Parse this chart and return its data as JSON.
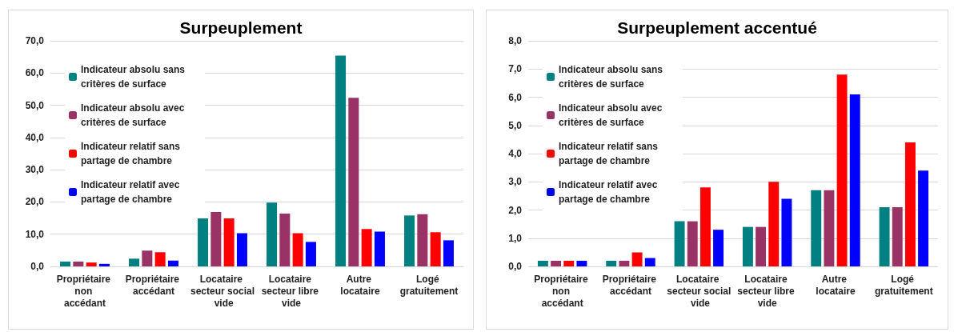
{
  "chart_data": [
    {
      "type": "bar",
      "title": "Surpeuplement",
      "categories": [
        "Propriétaire non accédant",
        "Propriétaire accédant",
        "Locataire secteur social vide",
        "Locataire secteur libre vide",
        "Autre locataire",
        "Logé gratuitement"
      ],
      "series": [
        {
          "name": "Indicateur absolu sans critères de surface",
          "color": "#008080",
          "values": [
            1.5,
            2.4,
            14.9,
            19.8,
            65.4,
            15.8
          ]
        },
        {
          "name": "Indicateur absolu avec critères de surface",
          "color": "#993366",
          "values": [
            1.5,
            4.9,
            16.9,
            16.4,
            52.3,
            16.2
          ]
        },
        {
          "name": "Indicateur relatif sans partage de chambre",
          "color": "#ff0000",
          "values": [
            1.2,
            4.4,
            14.9,
            10.3,
            11.6,
            10.6
          ]
        },
        {
          "name": "Indicateur relatif avec partage de chambre",
          "color": "#0000ff",
          "values": [
            0.8,
            1.8,
            10.3,
            7.6,
            10.8,
            8.1
          ]
        }
      ],
      "ylim": [
        0,
        70
      ],
      "yticks": [
        {
          "value": 0,
          "label": "0,0"
        },
        {
          "value": 10,
          "label": "10,0"
        },
        {
          "value": 20,
          "label": "20,0"
        },
        {
          "value": 30,
          "label": "30,0"
        },
        {
          "value": 40,
          "label": "40,0"
        },
        {
          "value": 50,
          "label": "50,0"
        },
        {
          "value": 60,
          "label": "60,0"
        },
        {
          "value": 70,
          "label": "70,0"
        }
      ],
      "grid": "y",
      "legend": "top left"
    },
    {
      "type": "bar",
      "title": "Surpeuplement accentué",
      "categories": [
        "Propriétaire non accédant",
        "Propriétaire accédant",
        "Locataire secteur social vide",
        "Locataire secteur libre vide",
        "Autre locataire",
        "Logé gratuitement"
      ],
      "series": [
        {
          "name": "Indicateur absolu sans critères de surface",
          "color": "#008080",
          "values": [
            0.2,
            0.2,
            1.6,
            1.4,
            2.7,
            2.1
          ]
        },
        {
          "name": "Indicateur absolu avec critères de surface",
          "color": "#993366",
          "values": [
            0.2,
            0.2,
            1.6,
            1.4,
            2.7,
            2.1
          ]
        },
        {
          "name": "Indicateur relatif sans partage de chambre",
          "color": "#ff0000",
          "values": [
            0.2,
            0.5,
            2.8,
            3.0,
            6.8,
            4.4
          ]
        },
        {
          "name": "Indicateur relatif avec partage de chambre",
          "color": "#0000ff",
          "values": [
            0.2,
            0.3,
            1.3,
            2.4,
            6.1,
            3.4
          ]
        }
      ],
      "ylim": [
        0,
        8
      ],
      "yticks": [
        {
          "value": 0,
          "label": "0,0"
        },
        {
          "value": 1,
          "label": "1,0"
        },
        {
          "value": 2,
          "label": "2,0"
        },
        {
          "value": 3,
          "label": "3,0"
        },
        {
          "value": 4,
          "label": "4,0"
        },
        {
          "value": 5,
          "label": "5,0"
        },
        {
          "value": 6,
          "label": "6,0"
        },
        {
          "value": 7,
          "label": "7,0"
        },
        {
          "value": 8,
          "label": "8,0"
        }
      ],
      "grid": "y",
      "legend": "top left"
    }
  ]
}
